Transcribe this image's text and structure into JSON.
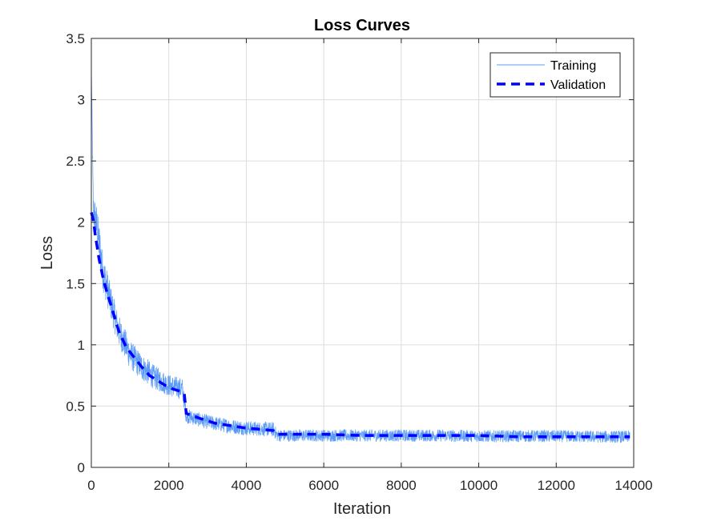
{
  "chart_data": {
    "type": "line",
    "title": "Loss Curves",
    "xlabel": "Iteration",
    "ylabel": "Loss",
    "xlim": [
      0,
      14000
    ],
    "ylim": [
      0,
      3.5
    ],
    "xticks": [
      0,
      2000,
      4000,
      6000,
      8000,
      10000,
      12000,
      14000
    ],
    "yticks": [
      0,
      0.5,
      1,
      1.5,
      2,
      2.5,
      3,
      3.5
    ],
    "grid": true,
    "legend_position": "top-right",
    "series": [
      {
        "name": "Training",
        "color": "#5b9bf5",
        "style": "solid-thin",
        "x": [
          0,
          50,
          150,
          300,
          500,
          700,
          1000,
          1300,
          1600,
          2000,
          2350,
          2450,
          3000,
          3500,
          4000,
          4700,
          4800,
          5500,
          6000,
          7000,
          8000,
          9000,
          10000,
          11000,
          12000,
          13000,
          13900
        ],
        "y": [
          3.3,
          2.1,
          1.95,
          1.6,
          1.35,
          1.12,
          0.92,
          0.82,
          0.74,
          0.67,
          0.64,
          0.42,
          0.37,
          0.34,
          0.32,
          0.31,
          0.26,
          0.26,
          0.26,
          0.26,
          0.26,
          0.26,
          0.255,
          0.255,
          0.255,
          0.25,
          0.25
        ],
        "noise": [
          0,
          0.15,
          0.18,
          0.16,
          0.14,
          0.13,
          0.12,
          0.11,
          0.1,
          0.09,
          0.09,
          0.06,
          0.06,
          0.06,
          0.06,
          0.06,
          0.05,
          0.05,
          0.05,
          0.05,
          0.05,
          0.05,
          0.05,
          0.05,
          0.05,
          0.05,
          0.05
        ]
      },
      {
        "name": "Validation",
        "color": "#0000ff",
        "style": "dashed-thick",
        "x": [
          0,
          50,
          100,
          200,
          300,
          400,
          500,
          700,
          900,
          1100,
          1300,
          1500,
          1700,
          1900,
          2100,
          2300,
          2400,
          2450,
          2800,
          3200,
          3600,
          4000,
          4400,
          4700,
          4800,
          5500,
          6000,
          7000,
          8000,
          9000,
          10000,
          11000,
          12000,
          13000,
          13900
        ],
        "y": [
          2.08,
          2.02,
          1.9,
          1.7,
          1.55,
          1.43,
          1.33,
          1.12,
          0.98,
          0.9,
          0.82,
          0.75,
          0.71,
          0.67,
          0.64,
          0.62,
          0.6,
          0.44,
          0.4,
          0.36,
          0.34,
          0.32,
          0.31,
          0.3,
          0.27,
          0.27,
          0.27,
          0.26,
          0.26,
          0.26,
          0.26,
          0.25,
          0.25,
          0.25,
          0.25
        ]
      }
    ]
  }
}
